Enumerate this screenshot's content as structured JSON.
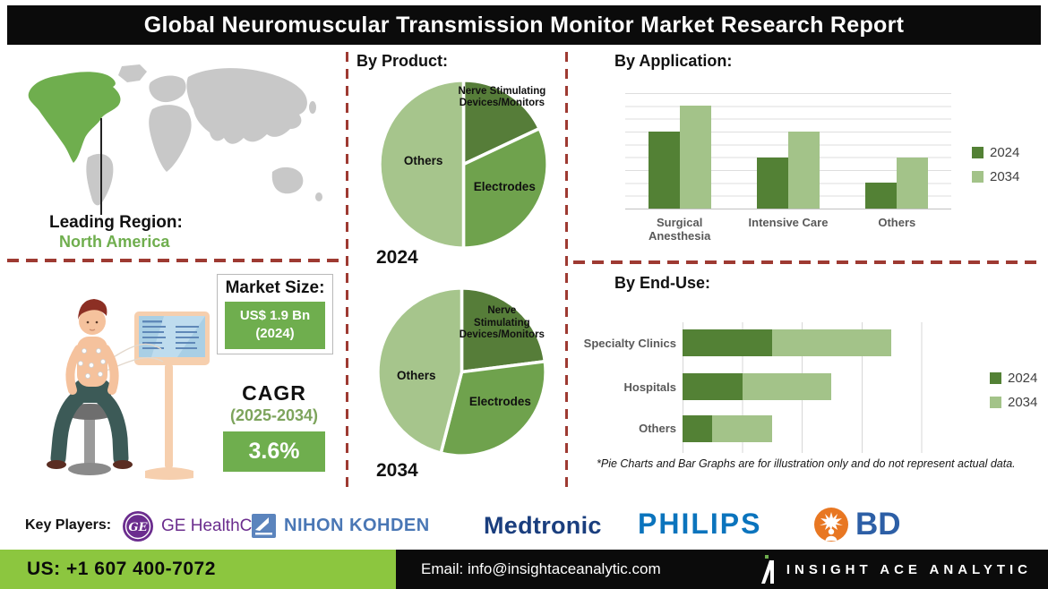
{
  "title": "Global Neuromuscular Transmission Monitor Market Research Report",
  "leading_region": {
    "label": "Leading Region:",
    "value": "North America"
  },
  "market_size": {
    "label": "Market Size:",
    "value": "US$ 1.9 Bn",
    "year": "(2024)"
  },
  "cagr": {
    "label": "CAGR",
    "period": "(2025-2034)",
    "value": "3.6%"
  },
  "sections": {
    "by_product": "By Product:",
    "by_application": "By Application:",
    "by_end_use": "By End-Use:"
  },
  "pie_years": [
    "2024",
    "2034"
  ],
  "footnote": "*Pie Charts and Bar Graphs are for illustration only and do not represent actual data.",
  "key_players": {
    "label": "Key Players:",
    "players": [
      {
        "name": "GE HealthCare",
        "monogram": "GE"
      },
      {
        "name": "NIHON KOHDEN"
      },
      {
        "name": "Medtronic"
      },
      {
        "name": "PHILIPS"
      },
      {
        "name": "BD"
      }
    ]
  },
  "footer": {
    "phone": "US: +1 607 400-7072",
    "email": "Email: info@insightaceanalytic.com",
    "brand": "INSIGHT ACE ANALYTIC"
  },
  "colors": {
    "accent_green": "#6fae4e",
    "footer_green": "#8cc63f",
    "dashed_divider": "#9e3a32",
    "map_highlight": "#6fae4e",
    "map_land": "#c8c8c8",
    "bar_2024": "#538135",
    "bar_2034": "#a3c389"
  },
  "chart_data": [
    {
      "type": "pie",
      "title": "By Product — 2024",
      "labels": [
        "Nerve Stimulating Devices/Monitors",
        "Electrodes",
        "Others"
      ],
      "values": [
        18,
        32,
        50
      ],
      "colors": [
        "#567d39",
        "#6fa24d",
        "#a6c58c"
      ],
      "note": "illustrative percentages, clockwise from top"
    },
    {
      "type": "pie",
      "title": "By Product — 2034",
      "labels": [
        "Nerve Stimulating Devices/Monitors",
        "Electrodes",
        "Others"
      ],
      "values": [
        23,
        31,
        46
      ],
      "colors": [
        "#567d39",
        "#6fa24d",
        "#a6c58c"
      ],
      "note": "illustrative percentages, clockwise from top"
    },
    {
      "type": "bar",
      "title": "By Application",
      "categories": [
        "Surgical Anesthesia",
        "Intensive Care",
        "Others"
      ],
      "series": [
        {
          "name": "2024",
          "values": [
            6,
            4,
            2
          ]
        },
        {
          "name": "2034",
          "values": [
            8,
            6,
            4
          ]
        }
      ],
      "ylim": [
        0,
        9
      ],
      "grid": true,
      "legend_position": "right",
      "note": "illustrative, axis unlabeled"
    },
    {
      "type": "bar",
      "orientation": "horizontal",
      "stacked": true,
      "title": "By End-Use",
      "categories": [
        "Specialty Clinics",
        "Hospitals",
        "Others"
      ],
      "series": [
        {
          "name": "2024",
          "values": [
            1.5,
            1,
            0.5
          ]
        },
        {
          "name": "2034",
          "values": [
            2,
            1.5,
            1
          ]
        }
      ],
      "xlim": [
        0,
        5
      ],
      "grid": true,
      "legend_position": "right",
      "note": "illustrative, axis unlabeled"
    }
  ]
}
